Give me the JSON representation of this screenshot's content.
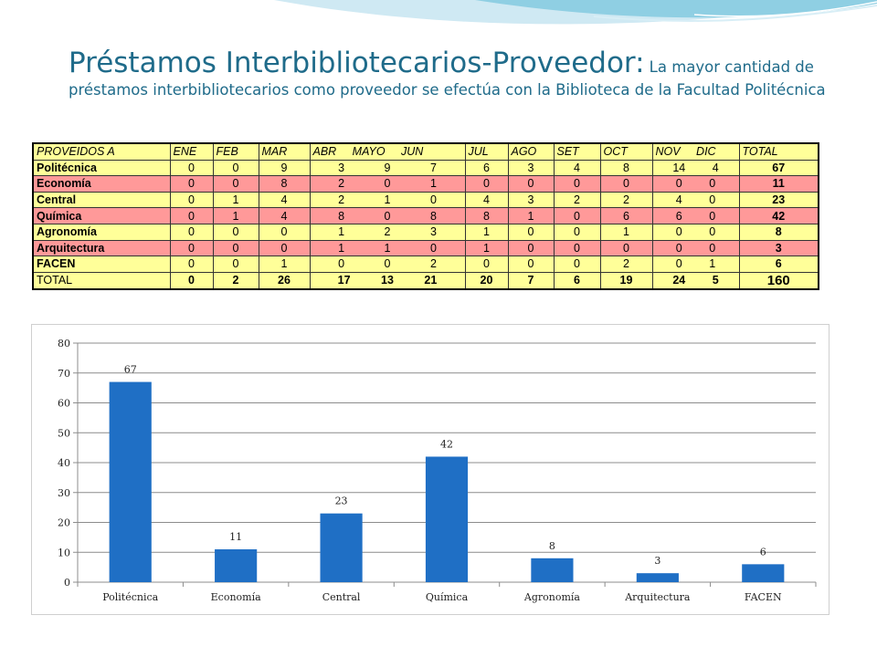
{
  "slide": {
    "title_main": "Préstamos Interbibliotecarios-Proveedor:",
    "title_sub": "La mayor cantidad de préstamos interbibliotecarios como proveedor se efectúa con la Biblioteca de la Facultad Politécnica"
  },
  "table": {
    "headers": [
      "PROVEIDOS A",
      "ENE",
      "FEB",
      "MAR",
      "ABR MAYO JUN",
      "JUL",
      "AGO",
      "SET",
      "OCT",
      "NOV DIC",
      "TOTAL"
    ],
    "rows": [
      {
        "name": "Politécnica",
        "mar": "9",
        "abrmayojun": "3 9 7",
        "jul": "6",
        "ago": "3",
        "set": "4",
        "oct": "8",
        "novdic": "14 4",
        "ene": "0",
        "feb": "0",
        "total": "67"
      },
      {
        "name": "Economía",
        "ene": "0",
        "feb": "0",
        "mar": "8",
        "abrmayojun": "2 0 1",
        "jul": "0",
        "ago": "0",
        "set": "0",
        "oct": "0",
        "novdic": "0 0",
        "total": "11"
      },
      {
        "name": "Central",
        "ene": "0",
        "feb": "1",
        "mar": "4",
        "abrmayojun": "2 1 0",
        "jul": "4",
        "ago": "3",
        "set": "2",
        "oct": "2",
        "novdic": "4 0",
        "total": "23"
      },
      {
        "name": "Química",
        "ene": "0",
        "feb": "1",
        "mar": "4",
        "abrmayojun": "8 0 8",
        "jul": "8",
        "ago": "1",
        "set": "0",
        "oct": "6",
        "novdic": "6 0",
        "total": "42"
      },
      {
        "name": "Agronomía",
        "ene": "0",
        "feb": "0",
        "mar": "0",
        "abrmayojun": "1 2 3",
        "jul": "1",
        "ago": "0",
        "set": "0",
        "oct": "1",
        "novdic": "0 0",
        "total": "8"
      },
      {
        "name": "Arquitectura",
        "ene": "0",
        "feb": "0",
        "mar": "0",
        "abrmayojun": "1 1 0",
        "jul": "1",
        "ago": "0",
        "set": "0",
        "oct": "0",
        "novdic": "0 0",
        "total": "3"
      },
      {
        "name": "FACEN",
        "ene": "0",
        "feb": "0",
        "mar": "1",
        "abrmayojun": "0 0 2",
        "jul": "0",
        "ago": "0",
        "set": "0",
        "oct": "2",
        "novdic": "0 1",
        "total": "6"
      },
      {
        "name": "TOTAL",
        "ene": "0",
        "feb": "2",
        "mar": "26",
        "abrmayojun": "17 13 21",
        "jul": "20",
        "ago": "7",
        "set": "6",
        "oct": "19",
        "novdic": "24 5",
        "total": "160"
      }
    ]
  },
  "chart_data": {
    "type": "bar",
    "categories": [
      "Politécnica",
      "Economía",
      "Central",
      "Química",
      "Agronomía",
      "Arquitectura",
      "FACEN"
    ],
    "values": [
      67,
      11,
      23,
      42,
      8,
      3,
      6
    ],
    "ylim": [
      0,
      80
    ],
    "yticks": [
      0,
      10,
      20,
      30,
      40,
      50,
      60,
      70,
      80
    ],
    "grid": true,
    "bar_color": "#1f6fc5",
    "title": "",
    "xlabel": "",
    "ylabel": ""
  },
  "colors": {
    "title": "#1f6b8a",
    "row_yellow": "#ffff99",
    "row_pink": "#ff9999"
  }
}
